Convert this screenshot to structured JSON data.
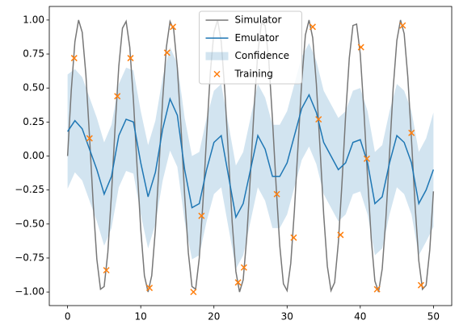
{
  "chart_data": {
    "type": "line",
    "xlim": [
      -2.5,
      52.5
    ],
    "xticks": [
      0,
      10,
      20,
      30,
      40,
      50
    ],
    "ylim": [
      -1.1,
      1.1
    ],
    "yticks": [
      {
        "value": -1,
        "label": "−1.00"
      },
      {
        "value": -0.75,
        "label": "−0.75"
      },
      {
        "value": -0.5,
        "label": "−0.50"
      },
      {
        "value": -0.25,
        "label": "−0.25"
      },
      {
        "value": 0,
        "label": "0.00"
      },
      {
        "value": 0.25,
        "label": "0.25"
      },
      {
        "value": 0.5,
        "label": "0.50"
      },
      {
        "value": 0.75,
        "label": "0.75"
      },
      {
        "value": 1,
        "label": "1.00"
      }
    ],
    "legend": "upper center",
    "series": [
      {
        "name": "Simulator",
        "type": "line",
        "color": "#777777",
        "x": [
          0,
          0.5,
          1,
          1.5,
          2,
          2.5,
          3,
          3.5,
          4,
          4.5,
          5,
          5.5,
          6,
          6.5,
          7,
          7.5,
          8,
          8.5,
          9,
          9.5,
          10,
          10.5,
          11,
          11.5,
          12,
          12.5,
          13,
          13.5,
          14,
          14.5,
          15,
          15.5,
          16,
          16.5,
          17,
          17.5,
          18,
          18.5,
          19,
          19.5,
          20,
          20.5,
          21,
          21.5,
          22,
          22.5,
          23,
          23.5,
          24,
          24.5,
          25,
          25.5,
          26,
          26.5,
          27,
          27.5,
          28,
          28.5,
          29,
          29.5,
          30,
          30.5,
          31,
          31.5,
          32,
          32.5,
          33,
          33.5,
          34,
          34.5,
          35,
          35.5,
          36,
          36.5,
          37,
          37.5,
          38,
          38.5,
          39,
          39.5,
          40,
          40.5,
          41,
          41.5,
          42,
          42.5,
          43,
          43.5,
          44,
          44.5,
          45,
          45.5,
          46,
          46.5,
          47,
          47.5,
          48,
          48.5,
          49,
          49.5,
          50
        ],
        "values": [
          0,
          0.48,
          0.84,
          1.0,
          0.91,
          0.6,
          0.14,
          -0.35,
          -0.76,
          -0.98,
          -0.96,
          -0.71,
          -0.28,
          0.22,
          0.66,
          0.94,
          0.99,
          0.8,
          0.41,
          -0.08,
          -0.54,
          -0.88,
          -1.0,
          -0.88,
          -0.54,
          -0.07,
          0.42,
          0.8,
          0.99,
          0.93,
          0.65,
          0.21,
          -0.29,
          -0.71,
          -0.96,
          -0.98,
          -0.75,
          -0.34,
          0.15,
          0.61,
          0.91,
          1.0,
          0.84,
          0.47,
          -0.01,
          -0.49,
          -0.85,
          -1.0,
          -0.91,
          -0.59,
          -0.13,
          0.36,
          0.76,
          0.98,
          0.96,
          0.7,
          0.27,
          -0.22,
          -0.66,
          -0.94,
          -0.99,
          -0.79,
          -0.4,
          0.08,
          0.55,
          0.89,
          1.0,
          0.87,
          0.53,
          0.06,
          -0.43,
          -0.81,
          -0.99,
          -0.93,
          -0.64,
          -0.2,
          0.3,
          0.72,
          0.96,
          0.97,
          0.75,
          0.33,
          -0.16,
          -0.61,
          -0.92,
          -1.0,
          -0.83,
          -0.46,
          0.02,
          0.5,
          0.85,
          1.0,
          0.9,
          0.58,
          0.12,
          -0.37,
          -0.77,
          -0.98,
          -0.95,
          -0.69,
          -0.26
        ]
      },
      {
        "name": "Emulator",
        "type": "line",
        "color": "#1f77b4",
        "x": [
          0,
          1,
          2,
          3,
          4,
          5,
          6,
          7,
          8,
          9,
          10,
          11,
          12,
          13,
          14,
          15,
          16,
          17,
          18,
          19,
          20,
          21,
          22,
          23,
          24,
          25,
          26,
          27,
          28,
          29,
          30,
          31,
          32,
          33,
          34,
          35,
          36,
          37,
          38,
          39,
          40,
          41,
          42,
          43,
          44,
          45,
          46,
          47,
          48,
          49,
          50
        ],
        "values": [
          0.18,
          0.26,
          0.2,
          0.05,
          -0.1,
          -0.28,
          -0.15,
          0.15,
          0.27,
          0.25,
          -0.05,
          -0.3,
          -0.12,
          0.2,
          0.42,
          0.3,
          -0.1,
          -0.38,
          -0.35,
          -0.1,
          0.1,
          0.15,
          -0.15,
          -0.45,
          -0.35,
          -0.1,
          0.15,
          0.05,
          -0.15,
          -0.15,
          -0.05,
          0.15,
          0.35,
          0.45,
          0.32,
          0.1,
          0.0,
          -0.1,
          -0.05,
          0.1,
          0.12,
          -0.05,
          -0.35,
          -0.3,
          -0.05,
          0.15,
          0.1,
          -0.05,
          -0.35,
          -0.25,
          -0.1
        ]
      },
      {
        "name": "Confidence",
        "type": "band",
        "color": "#1f77b4",
        "x": [
          0,
          1,
          2,
          3,
          4,
          5,
          6,
          7,
          8,
          9,
          10,
          11,
          12,
          13,
          14,
          15,
          16,
          17,
          18,
          19,
          20,
          21,
          22,
          23,
          24,
          25,
          26,
          27,
          28,
          29,
          30,
          31,
          32,
          33,
          34,
          35,
          36,
          37,
          38,
          39,
          40,
          41,
          42,
          43,
          44,
          45,
          46,
          47,
          48,
          49,
          50
        ],
        "upper": [
          0.6,
          0.64,
          0.58,
          0.43,
          0.28,
          0.1,
          0.23,
          0.53,
          0.65,
          0.63,
          0.33,
          0.08,
          0.26,
          0.58,
          0.8,
          0.68,
          0.28,
          0,
          0.03,
          0.28,
          0.48,
          0.53,
          0.23,
          -0.07,
          0.03,
          0.28,
          0.53,
          0.43,
          0.23,
          0.23,
          0.33,
          0.53,
          0.73,
          0.83,
          0.7,
          0.48,
          0.38,
          0.28,
          0.33,
          0.48,
          0.5,
          0.33,
          0.03,
          0.08,
          0.33,
          0.53,
          0.48,
          0.33,
          0.03,
          0.13,
          0.32
        ],
        "lower": [
          -0.24,
          -0.12,
          -0.18,
          -0.33,
          -0.48,
          -0.66,
          -0.53,
          -0.23,
          -0.11,
          -0.13,
          -0.43,
          -0.68,
          -0.5,
          -0.18,
          0.04,
          -0.08,
          -0.48,
          -0.76,
          -0.73,
          -0.48,
          -0.28,
          -0.23,
          -0.53,
          -0.83,
          -0.73,
          -0.48,
          -0.23,
          -0.33,
          -0.53,
          -0.53,
          -0.43,
          -0.23,
          -0.03,
          0.07,
          -0.06,
          -0.28,
          -0.38,
          -0.48,
          -0.43,
          -0.28,
          -0.26,
          -0.43,
          -0.73,
          -0.68,
          -0.43,
          -0.23,
          -0.28,
          -0.43,
          -0.73,
          -0.63,
          -0.52
        ]
      },
      {
        "name": "Training",
        "type": "scatter",
        "color": "#ff7f0e",
        "x": [
          0.9,
          3,
          5.3,
          6.8,
          8.6,
          11.2,
          13.6,
          14.4,
          17.2,
          18.3,
          23.3,
          24.1,
          28.6,
          30.9,
          33.5,
          34.3,
          37.3,
          40.1,
          40.9,
          42.3,
          45.8,
          47,
          48.3
        ],
        "values": [
          0.72,
          0.13,
          -0.84,
          0.44,
          0.72,
          -0.97,
          0.76,
          0.95,
          -1.0,
          -0.44,
          -0.93,
          -0.82,
          -0.28,
          -0.6,
          0.95,
          0.27,
          -0.58,
          0.8,
          -0.02,
          -0.98,
          0.96,
          0.17,
          -0.95
        ]
      }
    ]
  }
}
